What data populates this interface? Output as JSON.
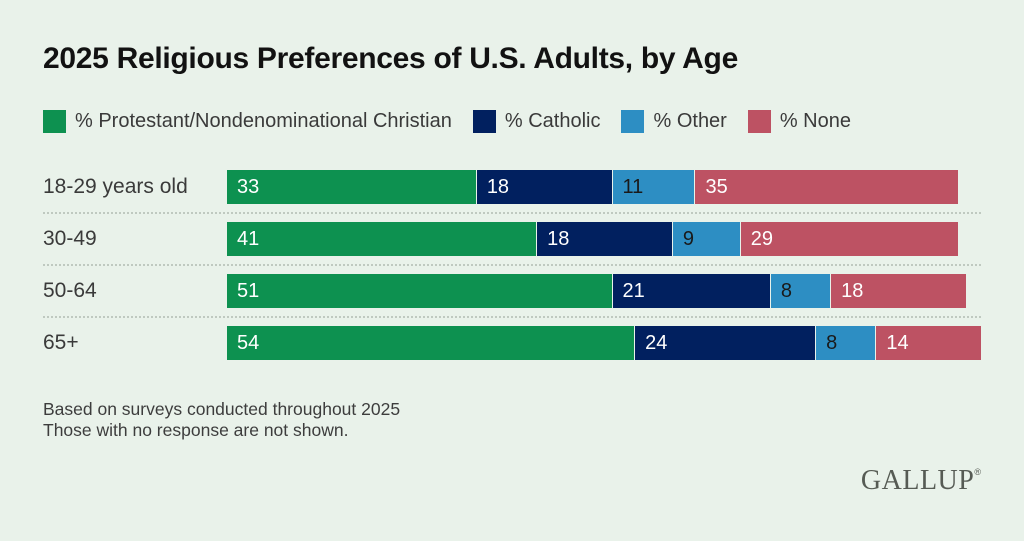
{
  "page": {
    "background_color": "#e9f2ea"
  },
  "title": "2025 Religious Preferences of U.S. Adults, by Age",
  "chart_data": {
    "type": "bar",
    "orientation": "horizontal",
    "stacked": true,
    "grid": false,
    "legend_position": "top",
    "x_max": 100,
    "categories": [
      "18-29 years old",
      "30-49",
      "50-64",
      "65+"
    ],
    "series": [
      {
        "key": "protestant",
        "name": "% Protestant/Nondenominational Christian",
        "color": "#0d9150",
        "label_color": "#ffffff",
        "values": [
          33,
          41,
          51,
          54
        ]
      },
      {
        "key": "catholic",
        "name": "% Catholic",
        "color": "#01205f",
        "label_color": "#ffffff",
        "values": [
          18,
          18,
          21,
          24
        ]
      },
      {
        "key": "other",
        "name": "% Other",
        "color": "#2d8ec3",
        "label_color": "#1a1a1a",
        "values": [
          11,
          9,
          8,
          8
        ]
      },
      {
        "key": "none",
        "name": "% None",
        "color": "#bd5263",
        "label_color": "#ffffff",
        "values": [
          35,
          29,
          18,
          14
        ]
      }
    ]
  },
  "footnotes": [
    "Based on surveys conducted throughout 2025",
    "Those with no response are not shown."
  ],
  "logo": {
    "text": "GALLUP",
    "mark": "®"
  }
}
